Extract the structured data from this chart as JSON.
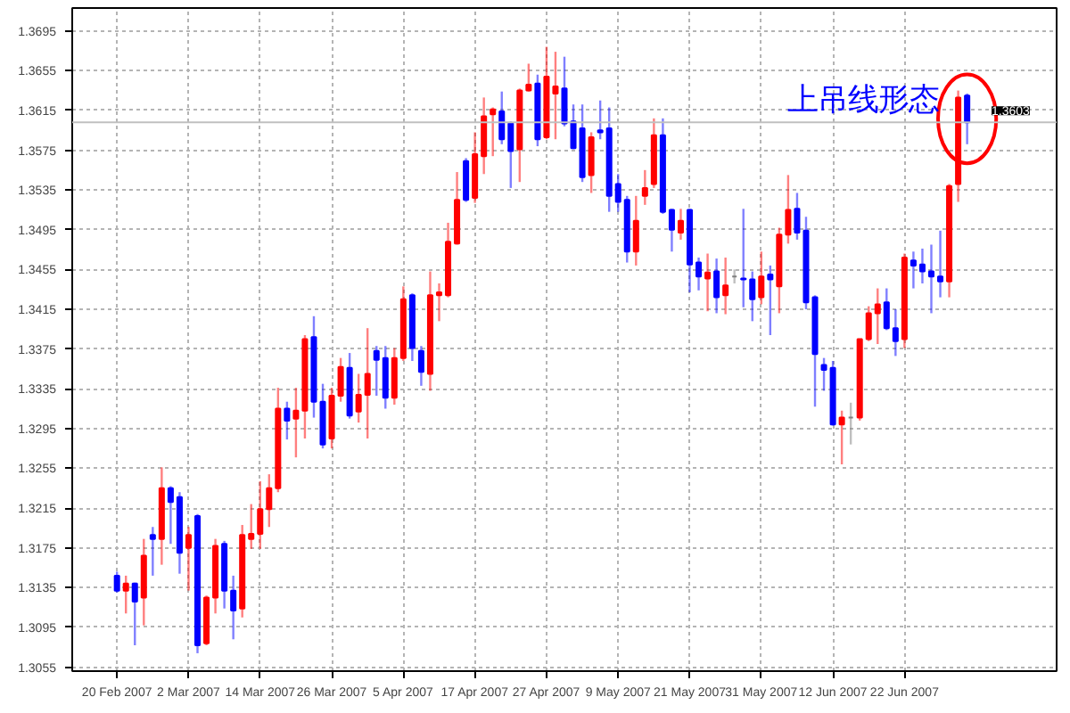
{
  "chart_data": {
    "type": "candlestick",
    "categories": [
      "20 Feb 2007",
      null,
      null,
      null,
      null,
      null,
      null,
      null,
      "2 Mar 2007",
      null,
      null,
      null,
      null,
      null,
      null,
      null,
      "14 Mar 2007",
      null,
      null,
      null,
      null,
      null,
      null,
      null,
      "26 Mar 2007",
      null,
      null,
      null,
      null,
      null,
      null,
      null,
      "5 Apr 2007",
      null,
      null,
      null,
      null,
      null,
      null,
      null,
      "17 Apr 2007",
      null,
      null,
      null,
      null,
      null,
      null,
      null,
      "27 Apr 2007",
      null,
      null,
      null,
      null,
      null,
      null,
      null,
      "9 May 2007",
      null,
      null,
      null,
      null,
      null,
      null,
      null,
      "21 May 2007",
      null,
      null,
      null,
      null,
      null,
      null,
      null,
      "31 May 2007",
      null,
      null,
      null,
      null,
      null,
      null,
      null,
      "12 Jun 2007",
      null,
      null,
      null,
      null,
      null,
      null,
      null,
      "22 Jun 2007",
      null,
      null,
      null,
      null,
      null,
      null,
      null
    ],
    "ohlc": [
      [
        1.3147,
        1.3151,
        1.313,
        1.3132
      ],
      [
        1.3132,
        1.3147,
        1.3109,
        1.3139
      ],
      [
        1.3139,
        1.314,
        1.3077,
        1.3121
      ],
      [
        1.3125,
        1.3184,
        1.3097,
        1.3167
      ],
      [
        1.3188,
        1.3196,
        1.3147,
        1.3184
      ],
      [
        1.3184,
        1.3256,
        1.3158,
        1.3235
      ],
      [
        1.3235,
        1.3237,
        1.3179,
        1.3221
      ],
      [
        1.3226,
        1.3231,
        1.3149,
        1.317
      ],
      [
        1.3175,
        1.3196,
        1.3132,
        1.3188
      ],
      [
        1.3207,
        1.3209,
        1.3069,
        1.3077
      ],
      [
        1.3079,
        1.3127,
        1.3077,
        1.3125
      ],
      [
        1.3125,
        1.3184,
        1.3109,
        1.3177
      ],
      [
        1.3179,
        1.3182,
        1.3114,
        1.3132
      ],
      [
        1.3132,
        1.3147,
        1.3083,
        1.3112
      ],
      [
        1.3114,
        1.3198,
        1.3105,
        1.3188
      ],
      [
        1.3184,
        1.3219,
        1.3174,
        1.3189
      ],
      [
        1.3189,
        1.3242,
        1.3174,
        1.3214
      ],
      [
        1.3214,
        1.3249,
        1.3196,
        1.3235
      ],
      [
        1.3235,
        1.3336,
        1.3231,
        1.3315
      ],
      [
        1.3315,
        1.3322,
        1.3284,
        1.3303
      ],
      [
        1.3305,
        1.3336,
        1.3266,
        1.3313
      ],
      [
        1.3313,
        1.3389,
        1.3285,
        1.3385
      ],
      [
        1.3387,
        1.3408,
        1.3306,
        1.3322
      ],
      [
        1.3322,
        1.334,
        1.3275,
        1.3279
      ],
      [
        1.3285,
        1.3336,
        1.3275,
        1.3328
      ],
      [
        1.3328,
        1.3366,
        1.3322,
        1.3357
      ],
      [
        1.3356,
        1.3371,
        1.3305,
        1.3308
      ],
      [
        1.3312,
        1.335,
        1.3301,
        1.3329
      ],
      [
        1.3329,
        1.3396,
        1.3285,
        1.335
      ],
      [
        1.3373,
        1.3378,
        1.3328,
        1.3364
      ],
      [
        1.3366,
        1.3378,
        1.3315,
        1.3326
      ],
      [
        1.3326,
        1.3376,
        1.3319,
        1.3366
      ],
      [
        1.3366,
        1.3438,
        1.3363,
        1.3425
      ],
      [
        1.3429,
        1.3431,
        1.3363,
        1.3376
      ],
      [
        1.3373,
        1.3378,
        1.3338,
        1.3352
      ],
      [
        1.335,
        1.3453,
        1.3333,
        1.3429
      ],
      [
        1.3429,
        1.3441,
        1.3403,
        1.3432
      ],
      [
        1.3429,
        1.3502,
        1.3427,
        1.3483
      ],
      [
        1.3481,
        1.3553,
        1.348,
        1.3525
      ],
      [
        1.3564,
        1.3567,
        1.3523,
        1.3525
      ],
      [
        1.3527,
        1.3593,
        1.3522,
        1.3571
      ],
      [
        1.3569,
        1.3628,
        1.3551,
        1.3609
      ],
      [
        1.3611,
        1.3618,
        1.3569,
        1.3616
      ],
      [
        1.3614,
        1.3634,
        1.3581,
        1.3586
      ],
      [
        1.3602,
        1.3604,
        1.3537,
        1.3574
      ],
      [
        1.3576,
        1.3637,
        1.3543,
        1.3635
      ],
      [
        1.3635,
        1.3662,
        1.3634,
        1.3641
      ],
      [
        1.3642,
        1.3651,
        1.3579,
        1.3586
      ],
      [
        1.3588,
        1.3679,
        1.3586,
        1.3649
      ],
      [
        1.3632,
        1.3674,
        1.3586,
        1.3639
      ],
      [
        1.3637,
        1.3669,
        1.3599,
        1.3602
      ],
      [
        1.3604,
        1.3621,
        1.3576,
        1.3577
      ],
      [
        1.3597,
        1.3621,
        1.3543,
        1.3548
      ],
      [
        1.355,
        1.3593,
        1.3532,
        1.3588
      ],
      [
        1.3595,
        1.3625,
        1.3586,
        1.3593
      ],
      [
        1.3597,
        1.3618,
        1.3513,
        1.3529
      ],
      [
        1.3541,
        1.3551,
        1.3513,
        1.3523
      ],
      [
        1.3525,
        1.3529,
        1.3462,
        1.3473
      ],
      [
        1.3473,
        1.3529,
        1.3459,
        1.3504
      ],
      [
        1.3529,
        1.3555,
        1.352,
        1.3537
      ],
      [
        1.3541,
        1.3607,
        1.3537,
        1.359
      ],
      [
        1.359,
        1.3607,
        1.3511,
        1.3513
      ],
      [
        1.3515,
        1.3516,
        1.3473,
        1.3495
      ],
      [
        1.3492,
        1.3516,
        1.3485,
        1.3504
      ],
      [
        1.3515,
        1.3516,
        1.3432,
        1.346
      ],
      [
        1.3462,
        1.3467,
        1.3434,
        1.3448
      ],
      [
        1.3446,
        1.3471,
        1.3413,
        1.3452
      ],
      [
        1.3453,
        1.3466,
        1.3411,
        1.3427
      ],
      [
        1.3429,
        1.3467,
        1.341,
        1.3439
      ],
      [
        1.3448,
        1.3455,
        1.3441,
        1.3448
      ],
      [
        1.3446,
        1.3516,
        1.3417,
        1.3445
      ],
      [
        1.3445,
        1.3453,
        1.3403,
        1.3425
      ],
      [
        1.3427,
        1.3473,
        1.342,
        1.3448
      ],
      [
        1.345,
        1.3459,
        1.3389,
        1.3445
      ],
      [
        1.3438,
        1.3497,
        1.3411,
        1.349
      ],
      [
        1.349,
        1.355,
        1.3481,
        1.3515
      ],
      [
        1.3516,
        1.3532,
        1.3485,
        1.3492
      ],
      [
        1.3494,
        1.3508,
        1.3415,
        1.3422
      ],
      [
        1.3427,
        1.3429,
        1.3317,
        1.337
      ],
      [
        1.3359,
        1.3366,
        1.3333,
        1.3354
      ],
      [
        1.3356,
        1.3363,
        1.3298,
        1.3299
      ],
      [
        1.3299,
        1.3313,
        1.3259,
        1.3306
      ],
      [
        1.3306,
        1.3321,
        1.3279,
        1.3306
      ],
      [
        1.3306,
        1.3385,
        1.3303,
        1.3385
      ],
      [
        1.3385,
        1.3418,
        1.3383,
        1.3411
      ],
      [
        1.3411,
        1.3436,
        1.338,
        1.342
      ],
      [
        1.3422,
        1.3436,
        1.3394,
        1.3396
      ],
      [
        1.3396,
        1.3415,
        1.3368,
        1.3383
      ],
      [
        1.3385,
        1.3471,
        1.3376,
        1.3467
      ],
      [
        1.3464,
        1.3473,
        1.3436,
        1.3459
      ],
      [
        1.346,
        1.3476,
        1.3441,
        1.3453
      ],
      [
        1.3453,
        1.348,
        1.3411,
        1.3448
      ],
      [
        1.3448,
        1.3494,
        1.3427,
        1.3443
      ],
      [
        1.3443,
        1.3541,
        1.3427,
        1.3539
      ],
      [
        1.3541,
        1.3635,
        1.3523,
        1.3628
      ],
      [
        1.363,
        1.3632,
        1.3581,
        1.3603
      ]
    ],
    "colors": [
      "#0000ff",
      "#ff0000",
      "#0000ff",
      "#ff0000",
      "#0000ff",
      "#ff0000",
      "#0000ff",
      "#0000ff",
      "#ff0000",
      "#0000ff",
      "#ff0000",
      "#ff0000",
      "#0000ff",
      "#0000ff",
      "#ff0000",
      "#ff0000",
      "#ff0000",
      "#ff0000",
      "#ff0000",
      "#0000ff",
      "#ff0000",
      "#ff0000",
      "#0000ff",
      "#0000ff",
      "#ff0000",
      "#ff0000",
      "#0000ff",
      "#ff0000",
      "#ff0000",
      "#0000ff",
      "#0000ff",
      "#ff0000",
      "#ff0000",
      "#0000ff",
      "#0000ff",
      "#ff0000",
      "#ff0000",
      "#ff0000",
      "#ff0000",
      "#0000ff",
      "#ff0000",
      "#ff0000",
      "#ff0000",
      "#0000ff",
      "#0000ff",
      "#ff0000",
      "#ff0000",
      "#0000ff",
      "#ff0000",
      "#ff0000",
      "#0000ff",
      "#0000ff",
      "#0000ff",
      "#ff0000",
      "#0000ff",
      "#0000ff",
      "#0000ff",
      "#0000ff",
      "#ff0000",
      "#ff0000",
      "#ff0000",
      "#0000ff",
      "#0000ff",
      "#ff0000",
      "#0000ff",
      "#0000ff",
      "#ff0000",
      "#0000ff",
      "#ff0000",
      "#808080",
      "#0000ff",
      "#0000ff",
      "#ff0000",
      "#0000ff",
      "#ff0000",
      "#ff0000",
      "#0000ff",
      "#0000ff",
      "#0000ff",
      "#0000ff",
      "#0000ff",
      "#ff0000",
      "#808080",
      "#ff0000",
      "#ff0000",
      "#ff0000",
      "#0000ff",
      "#0000ff",
      "#ff0000",
      "#0000ff",
      "#0000ff",
      "#0000ff",
      "#0000ff",
      "#ff0000",
      "#ff0000",
      "#0000ff"
    ],
    "ylim": [
      1.3051,
      1.3718
    ],
    "yticks": [
      1.3055,
      1.3095,
      1.3135,
      1.3175,
      1.3215,
      1.3255,
      1.3295,
      1.3335,
      1.3375,
      1.3415,
      1.3455,
      1.3495,
      1.3535,
      1.3575,
      1.3615,
      1.3655,
      1.3695
    ],
    "grid": true,
    "ref_lines": [
      {
        "axis": "y",
        "value": 1.3603,
        "label": "1.3603",
        "color": "#c0c0c0"
      }
    ],
    "annotations": [
      "上吊线形态"
    ]
  }
}
